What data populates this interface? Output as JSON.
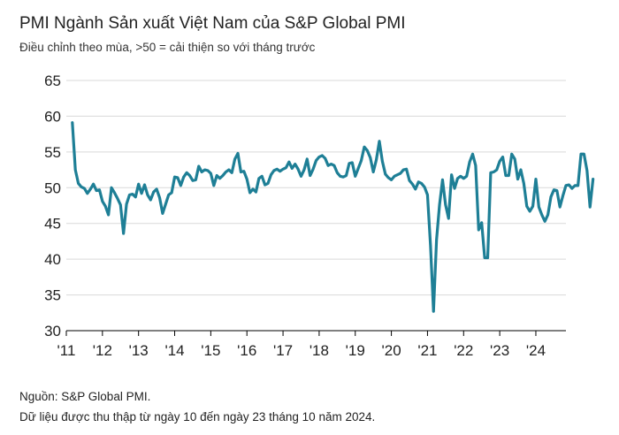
{
  "title": "PMI Ngành Sản xuất Việt Nam của S&P Global PMI",
  "subtitle": "Điều chỉnh theo mùa, >50 = cải thiện so với tháng trước",
  "source": "Nguồn: S&P Global PMI.",
  "note": "Dữ liệu được thu thập từ ngày 10 đến ngày 23 tháng 10 năm 2024.",
  "colors": {
    "line": "#1e7f96",
    "grid": "#d9d9d9",
    "axis": "#000000"
  },
  "chart_data": {
    "type": "line",
    "title": "PMI Ngành Sản xuất Việt Nam của S&P Global PMI",
    "subtitle": "Điều chỉnh theo mùa, >50 = cải thiện so với tháng trước",
    "xlabel": "",
    "ylabel": "",
    "ylim": [
      30,
      65
    ],
    "yticks": [
      30,
      35,
      40,
      45,
      50,
      55,
      60,
      65
    ],
    "xlim": [
      2011.0,
      2024.8333
    ],
    "xticks": [
      {
        "value": 2011,
        "label": "'11"
      },
      {
        "value": 2012,
        "label": "'12"
      },
      {
        "value": 2013,
        "label": "'13"
      },
      {
        "value": 2014,
        "label": "'14"
      },
      {
        "value": 2015,
        "label": "'15"
      },
      {
        "value": 2016,
        "label": "'16"
      },
      {
        "value": 2017,
        "label": "'17"
      },
      {
        "value": 2018,
        "label": "'18"
      },
      {
        "value": 2019,
        "label": "'19"
      },
      {
        "value": 2020,
        "label": "'20"
      },
      {
        "value": 2021,
        "label": "'21"
      },
      {
        "value": 2022,
        "label": "'22"
      },
      {
        "value": 2023,
        "label": "'23"
      },
      {
        "value": 2024,
        "label": "'24"
      }
    ],
    "grid": "horizontal",
    "start": "2011-03",
    "series": [
      {
        "values": [
          59.1,
          52.5,
          50.6,
          50.1,
          49.9,
          49.2,
          49.8,
          50.5,
          49.6,
          49.7,
          48.1,
          47.4,
          46.2,
          50.0,
          49.3,
          48.5,
          47.6,
          43.6,
          47.7,
          49.0,
          49.1,
          48.7,
          50.5,
          49.2,
          50.4,
          49.0,
          48.3,
          49.4,
          49.8,
          48.6,
          46.4,
          47.7,
          49.0,
          49.3,
          51.5,
          51.4,
          50.3,
          51.5,
          52.1,
          51.7,
          51.0,
          51.1,
          53.0,
          52.2,
          52.5,
          52.4,
          52.0,
          50.3,
          51.7,
          51.3,
          51.7,
          52.2,
          52.5,
          52.1,
          54.0,
          54.8,
          52.2,
          52.3,
          51.2,
          49.3,
          49.8,
          49.4,
          51.3,
          51.6,
          50.4,
          50.6,
          51.8,
          52.4,
          52.6,
          52.3,
          52.6,
          52.8,
          53.6,
          52.7,
          53.3,
          52.6,
          51.6,
          52.5,
          54.0,
          51.7,
          52.6,
          53.8,
          54.3,
          54.5,
          54.1,
          53.1,
          53.3,
          53.1,
          52.1,
          51.6,
          51.5,
          51.7,
          53.4,
          53.5,
          51.6,
          52.7,
          53.8,
          55.7,
          55.2,
          54.2,
          52.2,
          53.9,
          56.5,
          53.7,
          51.9,
          51.4,
          51.1,
          51.6,
          51.8,
          52.0,
          52.5,
          52.6,
          51.0,
          50.5,
          49.8,
          50.8,
          50.6,
          50.1,
          49.0,
          41.9,
          32.7,
          42.7,
          47.6,
          51.1,
          47.6,
          45.7,
          51.8,
          49.9,
          51.3,
          51.6,
          51.3,
          51.6,
          53.6,
          54.7,
          53.1,
          44.1,
          45.1,
          40.2,
          40.2,
          52.1,
          52.2,
          52.5,
          53.7,
          54.3,
          51.7,
          51.7,
          54.7,
          54.0,
          51.2,
          52.5,
          50.6,
          47.4,
          46.7,
          47.4,
          51.2,
          47.3,
          46.2,
          45.3,
          46.2,
          48.7,
          49.7,
          49.6,
          47.3,
          48.9,
          50.3,
          50.4,
          49.9,
          50.3,
          50.3,
          54.7,
          54.7,
          52.4,
          47.3,
          51.2
        ]
      }
    ]
  }
}
